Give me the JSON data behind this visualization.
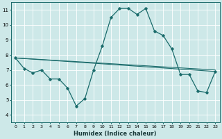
{
  "title": "",
  "xlabel": "Humidex (Indice chaleur)",
  "ylabel": "",
  "background_color": "#cde8e8",
  "grid_color": "#b0d4d4",
  "line_color": "#1a6b6b",
  "xlim": [
    -0.5,
    23.5
  ],
  "ylim": [
    3.5,
    11.5
  ],
  "xticks": [
    0,
    1,
    2,
    3,
    4,
    5,
    6,
    7,
    8,
    9,
    10,
    11,
    12,
    13,
    14,
    15,
    16,
    17,
    18,
    19,
    20,
    21,
    22,
    23
  ],
  "yticks": [
    4,
    5,
    6,
    7,
    8,
    9,
    10,
    11
  ],
  "series_main": {
    "x": [
      0,
      1,
      2,
      3,
      4,
      5,
      6,
      7,
      8,
      9,
      10,
      11,
      12,
      13,
      14,
      15,
      16,
      17,
      18,
      19,
      20,
      21,
      22,
      23
    ],
    "y": [
      7.8,
      7.1,
      6.8,
      7.0,
      6.4,
      6.4,
      5.8,
      4.6,
      5.1,
      7.0,
      8.6,
      10.5,
      11.1,
      11.1,
      10.7,
      11.1,
      9.6,
      9.3,
      8.4,
      6.7,
      6.7,
      5.6,
      5.5,
      6.9
    ]
  },
  "series_flat1": {
    "x": [
      0,
      23
    ],
    "y": [
      7.8,
      7.0
    ]
  },
  "series_flat2": {
    "x": [
      0,
      23
    ],
    "y": [
      7.8,
      6.9
    ]
  },
  "figwidth": 3.2,
  "figheight": 2.0,
  "dpi": 100
}
